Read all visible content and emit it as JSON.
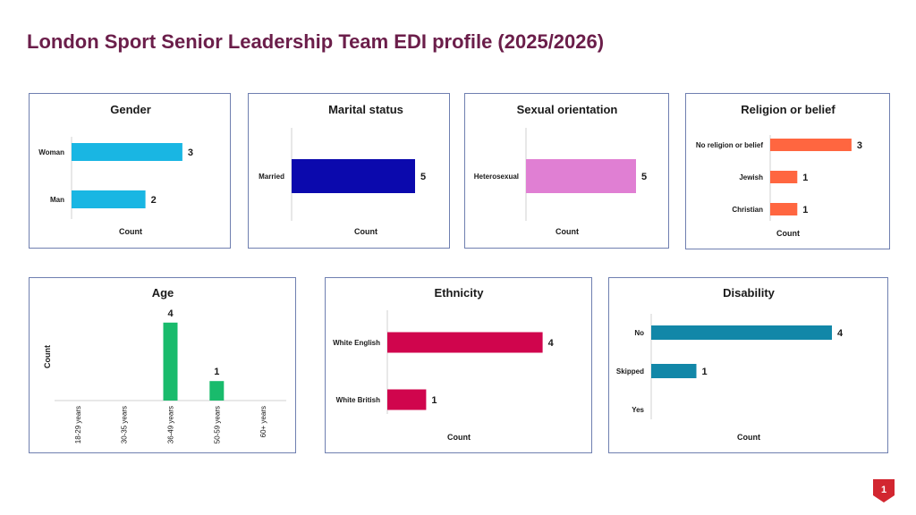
{
  "page": {
    "title": "London Sport Senior Leadership Team EDI profile (2025/2026)"
  },
  "badge": {
    "page_number": "1",
    "color": "#d22630"
  },
  "chart_data": [
    {
      "id": "gender",
      "type": "bar",
      "orientation": "horizontal",
      "title": "Gender",
      "categories": [
        "Woman",
        "Man"
      ],
      "values": [
        3,
        2
      ],
      "xlabel": "Count",
      "ylabel": "",
      "color": "#19b6e3",
      "value_labels": true,
      "grid": false
    },
    {
      "id": "marital",
      "type": "bar",
      "orientation": "horizontal",
      "title": "Marital status",
      "categories": [
        "Married"
      ],
      "values": [
        5
      ],
      "xlabel": "Count",
      "ylabel": "",
      "color": "#0b09ad",
      "value_labels": true,
      "grid": false
    },
    {
      "id": "sexual",
      "type": "bar",
      "orientation": "horizontal",
      "title": "Sexual orientation",
      "categories": [
        "Heterosexual"
      ],
      "values": [
        5
      ],
      "xlabel": "Count",
      "ylabel": "",
      "color": "#e07fd3",
      "value_labels": true,
      "grid": false
    },
    {
      "id": "religion",
      "type": "bar",
      "orientation": "horizontal",
      "title": "Religion or belief",
      "categories": [
        "No religion or belief",
        "Jewish",
        "Christian"
      ],
      "values": [
        3,
        1,
        1
      ],
      "xlabel": "Count",
      "ylabel": "",
      "color": "#ff6640",
      "value_labels": true,
      "grid": false
    },
    {
      "id": "age",
      "type": "bar",
      "orientation": "vertical",
      "title": "Age",
      "categories": [
        "18-29 years",
        "30-35 years",
        "36-49 years",
        "50-59 years",
        "60+ years"
      ],
      "values": [
        0,
        0,
        4,
        1,
        0
      ],
      "xlabel": "",
      "ylabel": "Count",
      "color": "#19bb6c",
      "value_labels": true,
      "grid": false
    },
    {
      "id": "ethnicity",
      "type": "bar",
      "orientation": "horizontal",
      "title": "Ethnicity",
      "categories": [
        "White English",
        "White British"
      ],
      "values": [
        4,
        1
      ],
      "xlabel": "Count",
      "ylabel": "",
      "color": "#d0054d",
      "value_labels": true,
      "grid": false
    },
    {
      "id": "disability",
      "type": "bar",
      "orientation": "horizontal",
      "title": "Disability",
      "categories": [
        "No",
        "Skipped",
        "Yes"
      ],
      "values": [
        4,
        1,
        0
      ],
      "xlabel": "Count",
      "ylabel": "",
      "color": "#1287a8",
      "value_labels": true,
      "grid": false
    }
  ]
}
